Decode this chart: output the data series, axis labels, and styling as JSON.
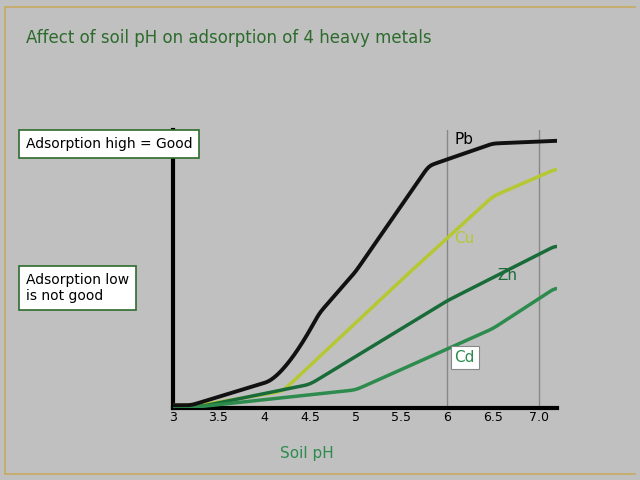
{
  "title": "Affect of soil pH on adsorption of 4 heavy metals",
  "xlabel": "Soil pH",
  "background_color": "#c0c0c0",
  "title_color": "#2d6b2d",
  "xlabel_color": "#2d8b4e",
  "x_ticks": [
    3,
    3.5,
    4,
    4.5,
    5,
    5.5,
    6,
    6.5,
    7.0
  ],
  "x_min": 3,
  "x_max": 7.2,
  "y_min": 0,
  "y_max": 1.0,
  "vline_x": 6.0,
  "pb_color": "#111111",
  "cu_color": "#b5c832",
  "zn_color": "#1a6b3a",
  "cd_color": "#2d8b4e",
  "annotation_high": "Adsorption high = Good",
  "annotation_low": "Adsorption low\nis not good",
  "box_facecolor": "#ffffff",
  "box_edgecolor": "#2d6b2d",
  "border_color": "#c8aa60"
}
